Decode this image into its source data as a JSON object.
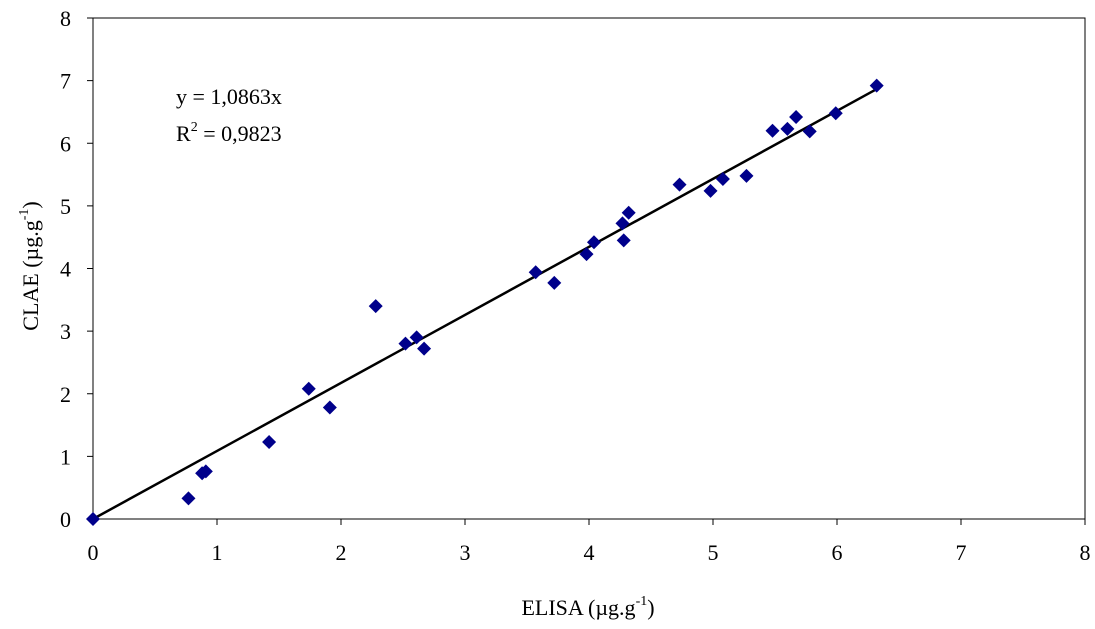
{
  "chart_data": {
    "type": "scatter",
    "title": "",
    "xlabel": {
      "base": "ELISA (µg.g",
      "sup": "-1",
      "tail": ")"
    },
    "ylabel": {
      "base": "CLAE (µg.g",
      "sup": "-1",
      "tail": ")"
    },
    "xlim": [
      0,
      8
    ],
    "ylim": [
      0,
      8
    ],
    "xticks": [
      "0",
      "1",
      "2",
      "3",
      "4",
      "5",
      "6",
      "7",
      "8"
    ],
    "yticks": [
      "0",
      "1",
      "2",
      "3",
      "4",
      "5",
      "6",
      "7",
      "8"
    ],
    "grid": false,
    "legend": "none",
    "marker_color": "#00008B",
    "line_color": "#000000",
    "series": [
      {
        "points": [
          [
            0.0,
            0.0
          ],
          [
            0.77,
            0.33
          ],
          [
            0.88,
            0.73
          ],
          [
            0.91,
            0.76
          ],
          [
            1.42,
            1.23
          ],
          [
            1.74,
            2.08
          ],
          [
            1.91,
            1.78
          ],
          [
            2.28,
            3.4
          ],
          [
            2.52,
            2.8
          ],
          [
            2.61,
            2.9
          ],
          [
            2.67,
            2.72
          ],
          [
            3.57,
            3.94
          ],
          [
            3.72,
            3.77
          ],
          [
            3.98,
            4.23
          ],
          [
            4.04,
            4.42
          ],
          [
            4.27,
            4.72
          ],
          [
            4.28,
            4.45
          ],
          [
            4.32,
            4.89
          ],
          [
            4.73,
            5.34
          ],
          [
            4.98,
            5.24
          ],
          [
            5.08,
            5.43
          ],
          [
            5.27,
            5.48
          ],
          [
            5.48,
            6.2
          ],
          [
            5.6,
            6.23
          ],
          [
            5.67,
            6.42
          ],
          [
            5.78,
            6.19
          ],
          [
            5.99,
            6.48
          ],
          [
            6.32,
            6.92
          ]
        ]
      }
    ],
    "trendline": {
      "slope": 1.0863,
      "x_range": [
        0,
        6.32
      ]
    },
    "annotation": {
      "equation": "y = 1,0863x",
      "r2_base": "R",
      "r2_sup": "2",
      "r2_value": " = 0,9823"
    }
  }
}
